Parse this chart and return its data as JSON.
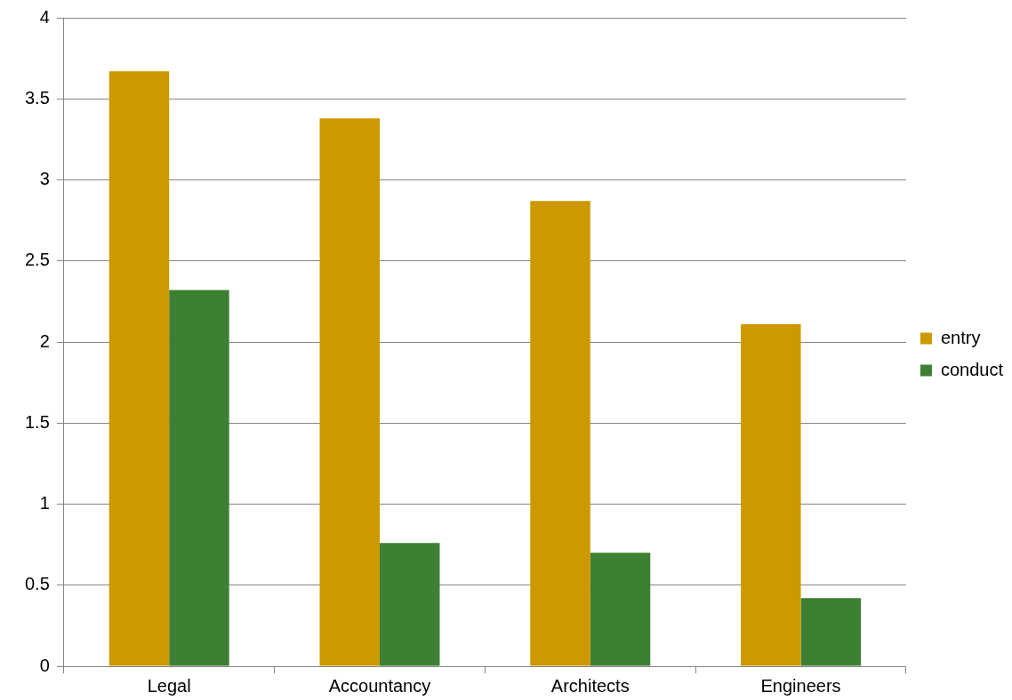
{
  "chart_data": {
    "type": "bar",
    "categories": [
      "Legal",
      "Accountancy",
      "Architects",
      "Engineers"
    ],
    "series": [
      {
        "name": "entry",
        "color": "#cc9900",
        "values": [
          3.67,
          3.38,
          2.87,
          2.11
        ]
      },
      {
        "name": "conduct",
        "color": "#3d8033",
        "values": [
          2.32,
          0.76,
          0.7,
          0.42
        ]
      }
    ],
    "ylim": [
      0,
      4
    ],
    "yticks": [
      0,
      0.5,
      1,
      1.5,
      2,
      2.5,
      3,
      3.5,
      4
    ],
    "grid": "y",
    "legend": "right"
  }
}
